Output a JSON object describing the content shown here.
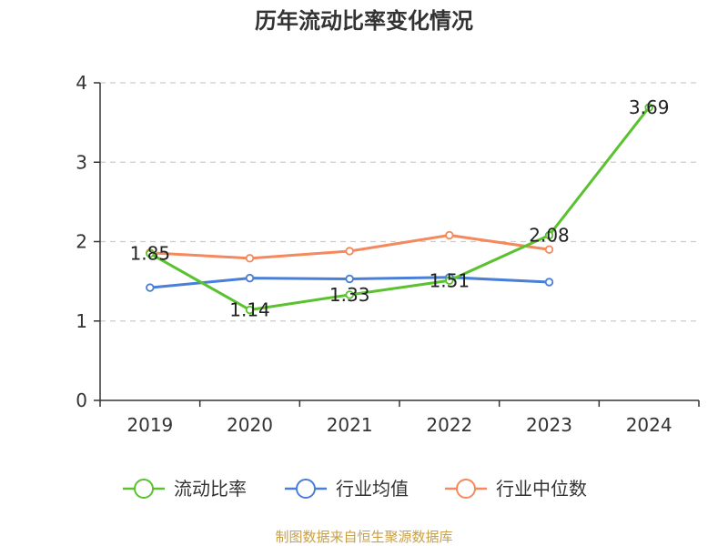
{
  "chart_data": {
    "type": "line",
    "title": "历年流动比率变化情况",
    "categories": [
      "2019",
      "2020",
      "2021",
      "2022",
      "2023",
      "2024"
    ],
    "ylim": [
      0,
      4
    ],
    "yticks": [
      "0",
      "1",
      "2",
      "3",
      "4"
    ],
    "grid": true,
    "legend_position": "bottom",
    "series": [
      {
        "name": "流动比率",
        "color": "#5ac12f",
        "values": [
          1.85,
          1.14,
          1.33,
          1.51,
          2.08,
          3.69
        ],
        "labels": [
          "1.85",
          "1.14",
          "1.33",
          "1.51",
          "2.08",
          "3.69"
        ]
      },
      {
        "name": "行业均值",
        "color": "#4a7fd8",
        "values": [
          1.42,
          1.54,
          1.53,
          1.55,
          1.49,
          null
        ]
      },
      {
        "name": "行业中位数",
        "color": "#f4895d",
        "values": [
          1.86,
          1.79,
          1.88,
          2.08,
          1.9,
          null
        ]
      }
    ]
  },
  "source": "制图数据来自恒生聚源数据库"
}
